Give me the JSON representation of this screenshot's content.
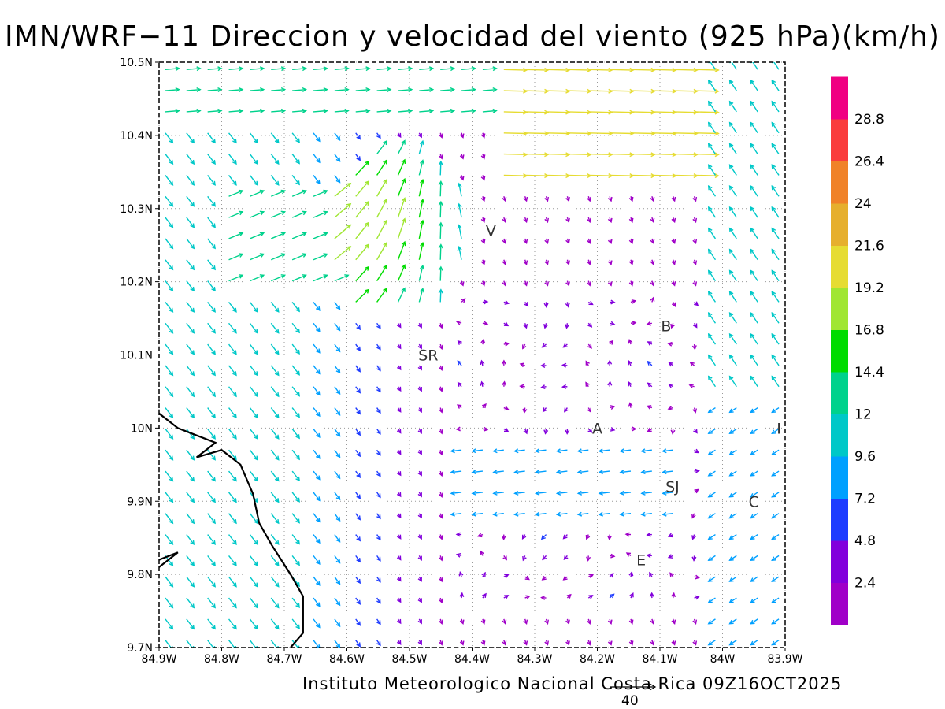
{
  "title": "IMN/WRF−11 Direccion y velocidad del viento (925 hPa)(km/h)",
  "credit": "Instituto Meteorologico Nacional Costa Rica 09Z16OCT2025",
  "reference_vector_label": "40",
  "map": {
    "lon_range": [
      -84.9,
      -83.9
    ],
    "lat_range": [
      9.7,
      10.5
    ],
    "x_ticks": [
      {
        "value": -84.9,
        "label": "84.9W"
      },
      {
        "value": -84.8,
        "label": "84.8W"
      },
      {
        "value": -84.7,
        "label": "84.7W"
      },
      {
        "value": -84.6,
        "label": "84.6W"
      },
      {
        "value": -84.5,
        "label": "84.5W"
      },
      {
        "value": -84.4,
        "label": "84.4W"
      },
      {
        "value": -84.3,
        "label": "84.3W"
      },
      {
        "value": -84.2,
        "label": "84.2W"
      },
      {
        "value": -84.1,
        "label": "84.1W"
      },
      {
        "value": -84.0,
        "label": "84W"
      },
      {
        "value": -83.9,
        "label": "83.9W"
      }
    ],
    "y_ticks": [
      {
        "value": 9.7,
        "label": "9.7N"
      },
      {
        "value": 9.8,
        "label": "9.8N"
      },
      {
        "value": 9.9,
        "label": "9.9N"
      },
      {
        "value": 10.0,
        "label": "10N"
      },
      {
        "value": 10.1,
        "label": "10.1N"
      },
      {
        "value": 10.2,
        "label": "10.2N"
      },
      {
        "value": 10.3,
        "label": "10.3N"
      },
      {
        "value": 10.4,
        "label": "10.4N"
      },
      {
        "value": 10.5,
        "label": "10.5N"
      }
    ],
    "grid": true,
    "stations": [
      {
        "label": "V",
        "lon": -84.37,
        "lat": 10.27
      },
      {
        "label": "B",
        "lon": -84.09,
        "lat": 10.14
      },
      {
        "label": "SR",
        "lon": -84.47,
        "lat": 10.1
      },
      {
        "label": "A",
        "lon": -84.2,
        "lat": 10.0
      },
      {
        "label": "I",
        "lon": -83.91,
        "lat": 10.0
      },
      {
        "label": "SJ",
        "lon": -84.08,
        "lat": 9.92
      },
      {
        "label": "C",
        "lon": -83.95,
        "lat": 9.9
      },
      {
        "label": "E",
        "lon": -84.13,
        "lat": 9.82
      }
    ],
    "coastline": [
      [
        -84.9,
        10.02
      ],
      [
        -84.87,
        10.0
      ],
      [
        -84.84,
        9.99
      ],
      [
        -84.81,
        9.98
      ],
      [
        -84.84,
        9.96
      ],
      [
        -84.8,
        9.97
      ],
      [
        -84.77,
        9.95
      ],
      [
        -84.75,
        9.91
      ],
      [
        -84.74,
        9.87
      ],
      [
        -84.72,
        9.84
      ],
      [
        -84.69,
        9.8
      ],
      [
        -84.67,
        9.77
      ],
      [
        -84.67,
        9.72
      ],
      [
        -84.69,
        9.7
      ]
    ],
    "coastline_south": [
      [
        -84.9,
        9.81
      ],
      [
        -84.87,
        9.83
      ],
      [
        -84.9,
        9.82
      ]
    ],
    "wind_field": {
      "units": "km/h",
      "note_levels": "arrow colour keyed to colorbar",
      "regions": [
        {
          "name": "pacific-flow",
          "dir_deg": 135,
          "speed": 12
        },
        {
          "name": "north-jet",
          "dir_deg": 90,
          "speed": 20
        },
        {
          "name": "sarapiqui-convergence",
          "dir_deg": 60,
          "speed": 18
        },
        {
          "name": "central-valley-weak",
          "dir_deg": 180,
          "speed": 3
        }
      ]
    }
  },
  "colorbar": {
    "levels": [
      {
        "value": "",
        "color": "#a000c8"
      },
      {
        "value": "2.4",
        "color": "#8200dc"
      },
      {
        "value": "4.8",
        "color": "#1e3cff"
      },
      {
        "value": "7.2",
        "color": "#00a0ff"
      },
      {
        "value": "9.6",
        "color": "#00c8c8"
      },
      {
        "value": "12",
        "color": "#00d28c"
      },
      {
        "value": "14.4",
        "color": "#00dc00"
      },
      {
        "value": "16.8",
        "color": "#a0e632"
      },
      {
        "value": "19.2",
        "color": "#e6dc32"
      },
      {
        "value": "21.6",
        "color": "#e6af2d"
      },
      {
        "value": "24",
        "color": "#f08228"
      },
      {
        "value": "26.4",
        "color": "#fa3c3c"
      },
      {
        "value": "28.8",
        "color": "#f00082"
      }
    ]
  }
}
